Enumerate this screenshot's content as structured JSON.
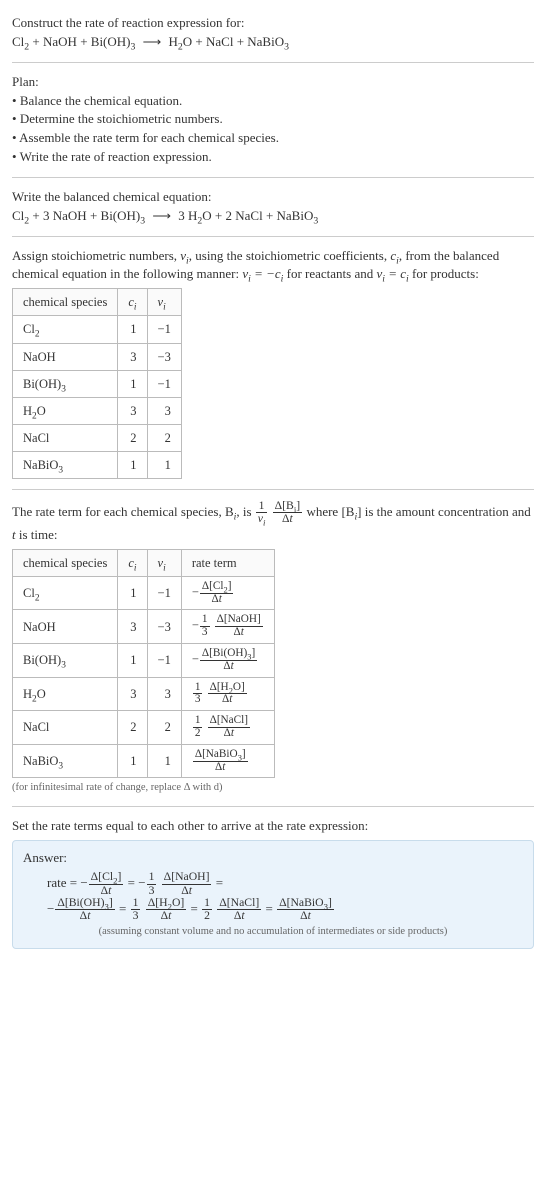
{
  "header": {
    "prompt": "Construct the rate of reaction expression for:",
    "reaction_left": [
      "Cl",
      "2",
      " + NaOH + Bi(OH)",
      "3"
    ],
    "reaction_right": [
      "H",
      "2",
      "O + NaCl + NaBiO",
      "3"
    ]
  },
  "plan": {
    "title": "Plan:",
    "items": [
      "Balance the chemical equation.",
      "Determine the stoichiometric numbers.",
      "Assemble the rate term for each chemical species.",
      "Write the rate of reaction expression."
    ]
  },
  "balanced": {
    "intro": "Write the balanced chemical equation:",
    "left": "Cl₂ + 3 NaOH + Bi(OH)₃",
    "right": "3 H₂O + 2 NaCl + NaBiO₃"
  },
  "assign": {
    "text_a": "Assign stoichiometric numbers, ",
    "nu": "ν",
    "sub_i": "i",
    "text_b": ", using the stoichiometric coefficients, ",
    "c": "c",
    "text_c": ", from the balanced chemical equation in the following manner: ",
    "eq1": "νᵢ = −cᵢ",
    "text_d": " for reactants and ",
    "eq2": "νᵢ = cᵢ",
    "text_e": " for products:"
  },
  "table1": {
    "headers": [
      "chemical species",
      "cᵢ",
      "νᵢ"
    ],
    "rows": [
      {
        "sp": "Cl₂",
        "c": "1",
        "nu": "−1"
      },
      {
        "sp": "NaOH",
        "c": "3",
        "nu": "−3"
      },
      {
        "sp": "Bi(OH)₃",
        "c": "1",
        "nu": "−1"
      },
      {
        "sp": "H₂O",
        "c": "3",
        "nu": "3"
      },
      {
        "sp": "NaCl",
        "c": "2",
        "nu": "2"
      },
      {
        "sp": "NaBiO₃",
        "c": "1",
        "nu": "1"
      }
    ]
  },
  "rateterm": {
    "a": "The rate term for each chemical species, B",
    "b": ", is ",
    "frac1_n": "1",
    "frac1_d": "νᵢ",
    "frac2_n": "Δ[Bᵢ]",
    "frac2_d": "Δt",
    "c": " where [B",
    "d": "] is the amount concentration and ",
    "t": "t",
    "e": " is time:"
  },
  "table2": {
    "headers": [
      "chemical species",
      "cᵢ",
      "νᵢ",
      "rate term"
    ],
    "rows": [
      {
        "sp": "Cl₂",
        "c": "1",
        "nu": "−1",
        "neg": "−",
        "coef_n": "",
        "coef_d": "",
        "num": "Δ[Cl₂]",
        "den": "Δt"
      },
      {
        "sp": "NaOH",
        "c": "3",
        "nu": "−3",
        "neg": "−",
        "coef_n": "1",
        "coef_d": "3",
        "num": "Δ[NaOH]",
        "den": "Δt"
      },
      {
        "sp": "Bi(OH)₃",
        "c": "1",
        "nu": "−1",
        "neg": "−",
        "coef_n": "",
        "coef_d": "",
        "num": "Δ[Bi(OH)₃]",
        "den": "Δt"
      },
      {
        "sp": "H₂O",
        "c": "3",
        "nu": "3",
        "neg": "",
        "coef_n": "1",
        "coef_d": "3",
        "num": "Δ[H₂O]",
        "den": "Δt"
      },
      {
        "sp": "NaCl",
        "c": "2",
        "nu": "2",
        "neg": "",
        "coef_n": "1",
        "coef_d": "2",
        "num": "Δ[NaCl]",
        "den": "Δt"
      },
      {
        "sp": "NaBiO₃",
        "c": "1",
        "nu": "1",
        "neg": "",
        "coef_n": "",
        "coef_d": "",
        "num": "Δ[NaBiO₃]",
        "den": "Δt"
      }
    ],
    "note": "(for infinitesimal rate of change, replace Δ with d)"
  },
  "final": {
    "lead": "Set the rate terms equal to each other to arrive at the rate expression:",
    "answer_label": "Answer:",
    "rate": "rate",
    "terms": [
      {
        "neg": "−",
        "coef_n": "",
        "coef_d": "",
        "num": "Δ[Cl₂]",
        "den": "Δt"
      },
      {
        "neg": "−",
        "coef_n": "1",
        "coef_d": "3",
        "num": "Δ[NaOH]",
        "den": "Δt"
      },
      {
        "neg": "−",
        "coef_n": "",
        "coef_d": "",
        "num": "Δ[Bi(OH)₃]",
        "den": "Δt"
      },
      {
        "neg": "",
        "coef_n": "1",
        "coef_d": "3",
        "num": "Δ[H₂O]",
        "den": "Δt"
      },
      {
        "neg": "",
        "coef_n": "1",
        "coef_d": "2",
        "num": "Δ[NaCl]",
        "den": "Δt"
      },
      {
        "neg": "",
        "coef_n": "",
        "coef_d": "",
        "num": "Δ[NaBiO₃]",
        "den": "Δt"
      }
    ],
    "note": "(assuming constant volume and no accumulation of intermediates or side products)"
  }
}
